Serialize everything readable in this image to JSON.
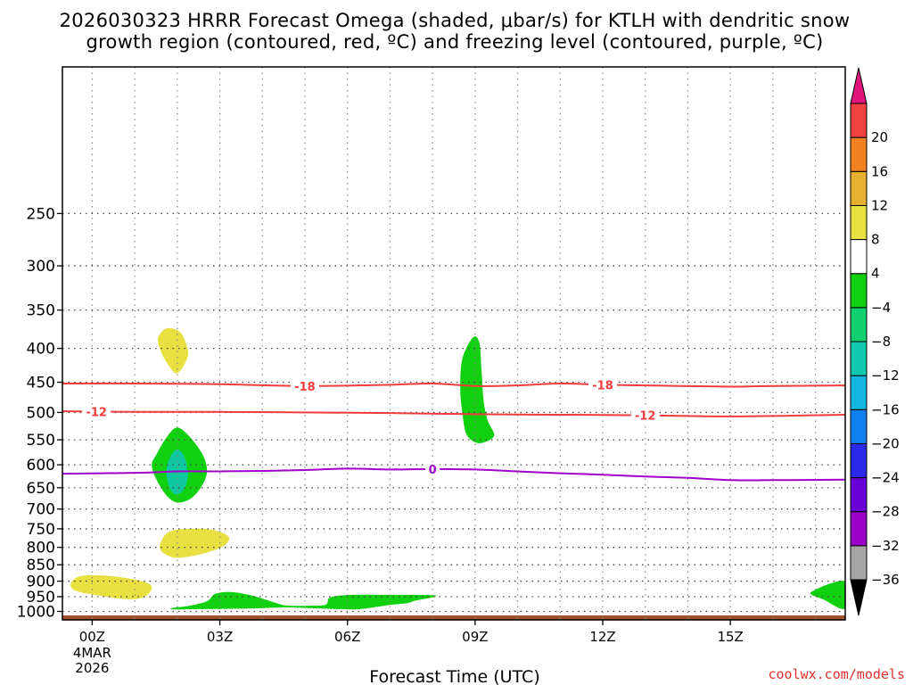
{
  "title_line1": "2026030323 HRRR Forecast Omega (shaded, μbar/s) for KTLH with dendritic snow",
  "title_line2": "growth region (contoured, red, ºC) and freezing level (contoured, purple, ºC)",
  "credit": "coolwx.com/models",
  "chart_data": {
    "type": "heatmap",
    "title": "2026030323 HRRR Forecast Omega (shaded, μbar/s) for KTLH with dendritic snow growth region (contoured, red, ºC) and freezing level (contoured, purple, ºC)",
    "xlabel": "Forecast Time (UTC)",
    "ylabel": "",
    "xlim_hours": [
      -0.7,
      17.7
    ],
    "ylim_hpa": [
      1030,
      150
    ],
    "x_ticks": [
      {
        "hour": 0,
        "label": "00Z",
        "sub": [
          "4MAR",
          "2026"
        ]
      },
      {
        "hour": 3,
        "label": "03Z"
      },
      {
        "hour": 6,
        "label": "06Z"
      },
      {
        "hour": 9,
        "label": "09Z"
      },
      {
        "hour": 12,
        "label": "12Z"
      },
      {
        "hour": 15,
        "label": "15Z"
      }
    ],
    "x_grid_hours": [
      0,
      1,
      2,
      3,
      4,
      5,
      6,
      7,
      8,
      9,
      10,
      11,
      12,
      13,
      14,
      15,
      16,
      17
    ],
    "y_ticks": [
      250,
      300,
      350,
      400,
      450,
      500,
      550,
      600,
      650,
      700,
      750,
      800,
      850,
      900,
      950,
      1000
    ],
    "colorbar": {
      "levels": [
        -36,
        -32,
        -28,
        -24,
        -20,
        -16,
        -12,
        -8,
        -4,
        4,
        8,
        12,
        16,
        20
      ],
      "labels": [
        "-36",
        "-32",
        "-28",
        "-24",
        "-20",
        "-16",
        "-12",
        "-8",
        "-4",
        "4",
        "8",
        "12",
        "16",
        "20"
      ],
      "colors": [
        "#a6a6a6",
        "#9a00c8",
        "#6a00d8",
        "#2a2ae8",
        "#1080f0",
        "#10b8e0",
        "#10c8b0",
        "#10d070",
        "#10d010",
        "#ffffff",
        "#e8e040",
        "#e8b030",
        "#f08020",
        "#f04040"
      ],
      "under_color": "#000000",
      "over_color": "#e0147a"
    },
    "contours": [
      {
        "name": "dendritic-18",
        "label": "-18",
        "color": "#f03c3c",
        "points": [
          [
            -0.7,
            452
          ],
          [
            1,
            452
          ],
          [
            3,
            453
          ],
          [
            5,
            456
          ],
          [
            7,
            454
          ],
          [
            8,
            452
          ],
          [
            9,
            456
          ],
          [
            10,
            455
          ],
          [
            11,
            452
          ],
          [
            12,
            454
          ],
          [
            13,
            455
          ],
          [
            15,
            457
          ],
          [
            16,
            456
          ],
          [
            17.7,
            455
          ]
        ],
        "label_hours": [
          5,
          12
        ]
      },
      {
        "name": "dendritic-12",
        "label": "-12",
        "color": "#f03c3c",
        "points": [
          [
            -0.7,
            498
          ],
          [
            1,
            499
          ],
          [
            3,
            499
          ],
          [
            5,
            500
          ],
          [
            7,
            501
          ],
          [
            9,
            503
          ],
          [
            11,
            504
          ],
          [
            13,
            505
          ],
          [
            15,
            507
          ],
          [
            17.7,
            504
          ]
        ],
        "label_hours": [
          0.1,
          13
        ]
      },
      {
        "name": "freezing-level",
        "label": "0",
        "color": "#a000c8",
        "points": [
          [
            -0.7,
            619
          ],
          [
            1,
            617
          ],
          [
            2,
            614
          ],
          [
            3,
            614
          ],
          [
            4,
            613
          ],
          [
            5,
            611
          ],
          [
            6,
            608
          ],
          [
            7,
            610
          ],
          [
            8,
            609
          ],
          [
            9,
            610
          ],
          [
            10,
            614
          ],
          [
            11,
            618
          ],
          [
            12,
            621
          ],
          [
            13,
            625
          ],
          [
            14,
            628
          ],
          [
            15,
            633
          ],
          [
            16,
            633
          ],
          [
            17.7,
            632
          ]
        ],
        "label_hours": [
          8
        ]
      }
    ],
    "shaded_regions": [
      {
        "name": "omega-positive-400",
        "value": "4 to 8",
        "color": "#e8e040",
        "points": [
          [
            1.55,
            385
          ],
          [
            1.75,
            373
          ],
          [
            2.05,
            377
          ],
          [
            2.2,
            392
          ],
          [
            2.25,
            410
          ],
          [
            2.1,
            430
          ],
          [
            1.95,
            436
          ],
          [
            1.75,
            420
          ],
          [
            1.6,
            402
          ]
        ]
      },
      {
        "name": "omega-negative-ascent-400",
        "value": "-8 to -4",
        "color": "#10d010",
        "points": [
          [
            8.7,
            415
          ],
          [
            8.95,
            385
          ],
          [
            9.1,
            392
          ],
          [
            9.15,
            430
          ],
          [
            9.2,
            480
          ],
          [
            9.3,
            515
          ],
          [
            9.45,
            540
          ],
          [
            9.3,
            552
          ],
          [
            9.05,
            556
          ],
          [
            8.8,
            540
          ],
          [
            8.7,
            500
          ],
          [
            8.65,
            460
          ]
        ]
      },
      {
        "name": "omega-negative-600",
        "value": "-8 to -4",
        "color": "#10d010",
        "points": [
          [
            1.5,
            580
          ],
          [
            1.75,
            545
          ],
          [
            2.0,
            527
          ],
          [
            2.3,
            545
          ],
          [
            2.6,
            580
          ],
          [
            2.7,
            615
          ],
          [
            2.55,
            650
          ],
          [
            2.3,
            676
          ],
          [
            2.0,
            684
          ],
          [
            1.75,
            668
          ],
          [
            1.5,
            630
          ],
          [
            1.4,
            600
          ]
        ]
      },
      {
        "name": "omega-core-600",
        "value": "-12 to -8",
        "color": "#10c8a0",
        "points": [
          [
            1.75,
            605
          ],
          [
            1.95,
            570
          ],
          [
            2.15,
            580
          ],
          [
            2.25,
            620
          ],
          [
            2.15,
            655
          ],
          [
            1.95,
            665
          ],
          [
            1.8,
            645
          ]
        ]
      },
      {
        "name": "omega-positive-800",
        "value": "4 to 8",
        "color": "#e8e040",
        "points": [
          [
            1.6,
            790
          ],
          [
            1.8,
            758
          ],
          [
            2.3,
            750
          ],
          [
            2.8,
            752
          ],
          [
            3.2,
            770
          ],
          [
            3.1,
            795
          ],
          [
            2.6,
            818
          ],
          [
            2.0,
            830
          ],
          [
            1.7,
            818
          ],
          [
            1.6,
            805
          ]
        ]
      },
      {
        "name": "omega-positive-925",
        "value": "4 to 8",
        "color": "#e8e040",
        "points": [
          [
            -0.5,
            908
          ],
          [
            -0.3,
            885
          ],
          [
            0.2,
            882
          ],
          [
            0.8,
            890
          ],
          [
            1.3,
            906
          ],
          [
            1.4,
            925
          ],
          [
            1.2,
            952
          ],
          [
            0.8,
            958
          ],
          [
            0.1,
            945
          ],
          [
            -0.4,
            930
          ]
        ]
      },
      {
        "name": "omega-negative-low",
        "value": "-8 to -4",
        "color": "#10d010",
        "points": [
          [
            1.9,
            988
          ],
          [
            2.3,
            980
          ],
          [
            2.7,
            965
          ],
          [
            2.9,
            940
          ],
          [
            3.3,
            935
          ],
          [
            3.8,
            948
          ],
          [
            4.3,
            970
          ],
          [
            4.6,
            980
          ],
          [
            5.2,
            980
          ],
          [
            5.5,
            976
          ],
          [
            5.6,
            952
          ],
          [
            6.1,
            944
          ],
          [
            7.0,
            944
          ],
          [
            8.0,
            945
          ],
          [
            8.0,
            952
          ],
          [
            7.6,
            963
          ],
          [
            7.4,
            972
          ],
          [
            7.0,
            978
          ],
          [
            6.3,
            992
          ],
          [
            5.8,
            992
          ],
          [
            5.0,
            988
          ],
          [
            4.5,
            986
          ],
          [
            3.7,
            990
          ],
          [
            2.6,
            992
          ],
          [
            1.9,
            993
          ]
        ]
      },
      {
        "name": "omega-negative-edge",
        "value": "-8 to -4",
        "color": "#10d010",
        "points": [
          [
            17.7,
            900
          ],
          [
            17.7,
            990
          ],
          [
            17.2,
            960
          ],
          [
            16.9,
            935
          ]
        ]
      },
      {
        "name": "terrain",
        "value": "surface",
        "color": "#a0522d",
        "points": [
          [
            -0.7,
            1014
          ],
          [
            17.7,
            1014
          ],
          [
            17.7,
            1030
          ],
          [
            -0.7,
            1030
          ]
        ]
      }
    ]
  }
}
